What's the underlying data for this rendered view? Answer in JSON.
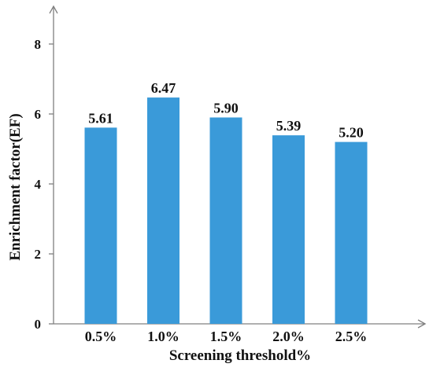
{
  "chart_data": {
    "type": "bar",
    "categories": [
      "0.5%",
      "1.0%",
      "1.5%",
      "2.0%",
      "2.5%"
    ],
    "values": [
      5.61,
      6.47,
      5.9,
      5.39,
      5.2
    ],
    "data_labels": [
      "5.61",
      "6.47",
      "5.90",
      "5.39",
      "5.20"
    ],
    "title": "",
    "xlabel": "Screening threshold%",
    "ylabel": "Enrichment factor(EF)",
    "ylim": [
      0,
      8
    ],
    "yticks": [
      "0",
      "2",
      "4",
      "6",
      "8"
    ],
    "grid": false,
    "legend": "none",
    "bar_color": "#3a9ad9",
    "axis_color": "#808080"
  }
}
